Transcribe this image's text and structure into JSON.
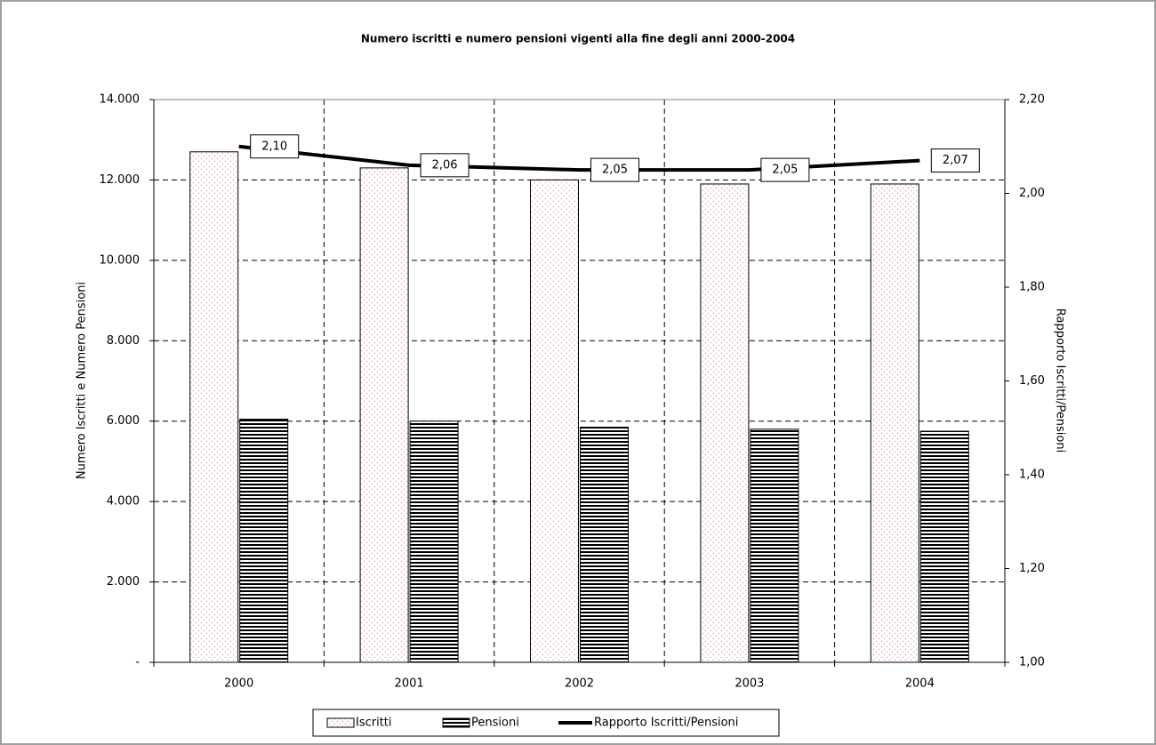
{
  "chart_data": {
    "type": "bar-line",
    "title": "Numero iscritti e numero pensioni vigenti alla fine degli anni 2000-2004",
    "y_label": "Numero Iscritti e Numero Pensioni",
    "y2_label": "Rapporto Iscritti/Pensioni",
    "categories": [
      "2000",
      "2001",
      "2002",
      "2003",
      "2004"
    ],
    "series": [
      {
        "name": "Iscritti",
        "type": "bar",
        "color": "#e8a0a0",
        "values": [
          12700,
          12300,
          12000,
          11900,
          11900
        ]
      },
      {
        "name": "Pensioni",
        "type": "bar",
        "color": "#000000",
        "values": [
          6050,
          6000,
          5850,
          5800,
          5750
        ]
      },
      {
        "name": "Rapporto Iscritti/Pensioni",
        "type": "line",
        "axis": "y2",
        "color": "#000000",
        "values": [
          2.1,
          2.06,
          2.05,
          2.05,
          2.07
        ],
        "value_labels": [
          "2,10",
          "2,06",
          "2,05",
          "2,05",
          "2,07"
        ]
      }
    ],
    "ylim": [
      0,
      14000
    ],
    "yticks": [
      {
        "value": 0,
        "label": "-"
      },
      {
        "value": 2000,
        "label": "2.000"
      },
      {
        "value": 4000,
        "label": "4.000"
      },
      {
        "value": 6000,
        "label": "6.000"
      },
      {
        "value": 8000,
        "label": "8.000"
      },
      {
        "value": 10000,
        "label": "10.000"
      },
      {
        "value": 12000,
        "label": "12.000"
      },
      {
        "value": 14000,
        "label": "14.000"
      }
    ],
    "y2lim": [
      1.0,
      2.2
    ],
    "y2ticks": [
      {
        "value": 1.0,
        "label": "1,00"
      },
      {
        "value": 1.2,
        "label": "1,20"
      },
      {
        "value": 1.4,
        "label": "1,40"
      },
      {
        "value": 1.6,
        "label": "1,60"
      },
      {
        "value": 1.8,
        "label": "1,80"
      },
      {
        "value": 2.0,
        "label": "2,00"
      },
      {
        "value": 2.2,
        "label": "2,20"
      }
    ],
    "grid": true,
    "legend": "bottom"
  }
}
